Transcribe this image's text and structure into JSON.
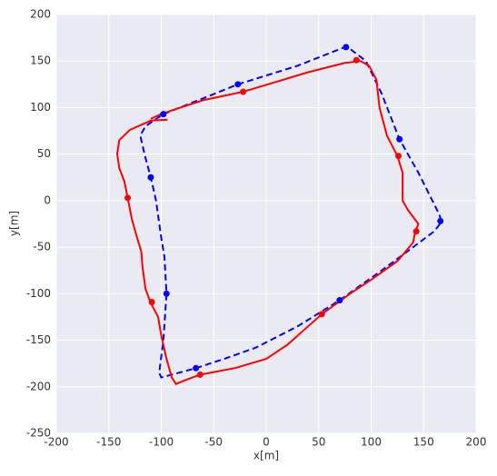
{
  "chart_data": {
    "type": "line",
    "xlabel": "x[m]",
    "ylabel": "y[m]",
    "xlim": [
      -200,
      200
    ],
    "xticks": [
      -200,
      -150,
      -100,
      -50,
      0,
      50,
      100,
      150,
      200
    ],
    "ylim": [
      -250,
      200
    ],
    "yticks": [
      -250,
      -200,
      -150,
      -100,
      -50,
      0,
      50,
      100,
      150,
      200
    ],
    "grid": true,
    "series": [
      {
        "color": "#0000ff",
        "linestyle": "dashed",
        "x": [
          -98,
          -60,
          -27,
          30,
          75,
          80,
          95,
          110,
          127,
          145,
          165,
          167,
          160,
          140,
          110,
          70,
          30,
          -10,
          -40,
          -67,
          -100,
          -102,
          -98,
          -95,
          -97,
          -100,
          -105,
          -110,
          -116,
          -120,
          -115,
          -98
        ],
        "y": [
          93,
          110,
          125,
          145,
          165,
          163,
          150,
          115,
          66,
          30,
          -15,
          -23,
          -33,
          -50,
          -75,
          -107,
          -135,
          -158,
          -170,
          -180,
          -190,
          -185,
          -150,
          -100,
          -60,
          -40,
          0,
          25,
          50,
          70,
          80,
          93
        ]
      },
      {
        "color": "#ff0000",
        "linestyle": "solid",
        "x": [
          -94,
          -110,
          -130,
          -140,
          -142,
          -140,
          -135,
          -132,
          -128,
          -123,
          -119,
          -118,
          -115,
          -110,
          -103,
          -100,
          -95,
          -90,
          -86,
          -75,
          -63,
          -30,
          0,
          20,
          35,
          53,
          80,
          100,
          125,
          140,
          142,
          145,
          135,
          130,
          130,
          125,
          115,
          108,
          105,
          98,
          90,
          75,
          40,
          -22,
          -60,
          -90,
          -100,
          -110
        ],
        "y": [
          87,
          86,
          76,
          65,
          50,
          35,
          20,
          3,
          -20,
          -40,
          -55,
          -70,
          -95,
          -110,
          -125,
          -145,
          -170,
          -190,
          -197,
          -192,
          -187,
          -180,
          -170,
          -155,
          -140,
          -122,
          -100,
          -85,
          -65,
          -45,
          -33,
          -25,
          -10,
          0,
          30,
          48,
          70,
          100,
          130,
          145,
          150,
          148,
          138,
          117,
          108,
          97,
          93,
          88
        ]
      },
      {
        "color": "#0000ff",
        "marker": "circle",
        "x": [
          -98,
          -27,
          76,
          127,
          166,
          70,
          -67,
          -95,
          -110
        ],
        "y": [
          93,
          125,
          165,
          66,
          -22,
          -107,
          -180,
          -100,
          25
        ]
      },
      {
        "color": "#ff0000",
        "marker": "circle",
        "x": [
          -22,
          86,
          126,
          143,
          53,
          -63,
          -109,
          -132
        ],
        "y": [
          117,
          151,
          48,
          -33,
          -122,
          -187,
          -109,
          3
        ]
      }
    ]
  }
}
